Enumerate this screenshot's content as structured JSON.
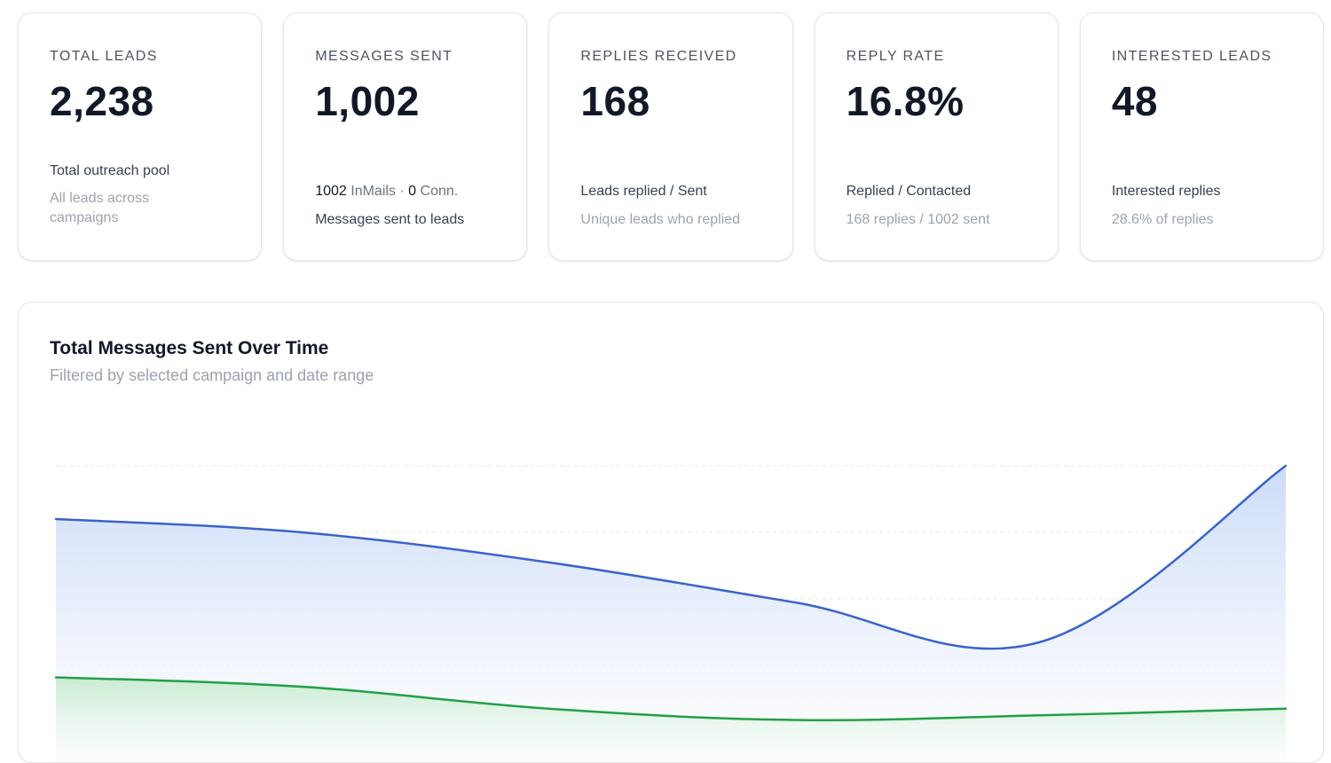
{
  "cards": [
    {
      "label": "TOTAL LEADS",
      "value": "2,238",
      "line1": "Total outreach pool",
      "line2": "All leads across campaigns"
    },
    {
      "label": "MESSAGES SENT",
      "value": "1,002",
      "inmails_count": "1002",
      "inmails_label": "InMails",
      "separator": "·",
      "conn_count": "0",
      "conn_label": "Conn.",
      "line2": "Messages sent to leads"
    },
    {
      "label": "REPLIES RECEIVED",
      "value": "168",
      "line1": "Leads replied / Sent",
      "line2": "Unique leads who replied"
    },
    {
      "label": "REPLY RATE",
      "value": "16.8%",
      "line1": "Replied / Contacted",
      "line2": "168 replies / 1002 sent"
    },
    {
      "label": "INTERESTED LEADS",
      "value": "48",
      "line1": "Interested replies",
      "line2": "28.6% of replies"
    }
  ],
  "chart": {
    "title": "Total Messages Sent Over Time",
    "subtitle": "Filtered by selected campaign and date range"
  },
  "chart_data": {
    "type": "area",
    "title": "Total Messages Sent Over Time",
    "subtitle": "Filtered by selected campaign and date range",
    "grid": true,
    "ylim": [
      0,
      400
    ],
    "x": [
      0,
      1,
      2,
      3,
      4,
      5
    ],
    "series": [
      {
        "values": [
          320,
          300,
          255,
          195,
          135,
          400
        ],
        "color": "#3b63c9",
        "fill": "#dbe6fb"
      },
      {
        "values": [
          82,
          68,
          35,
          18,
          25,
          35
        ],
        "color": "#22a045",
        "fill": "#dff3e4"
      }
    ]
  }
}
